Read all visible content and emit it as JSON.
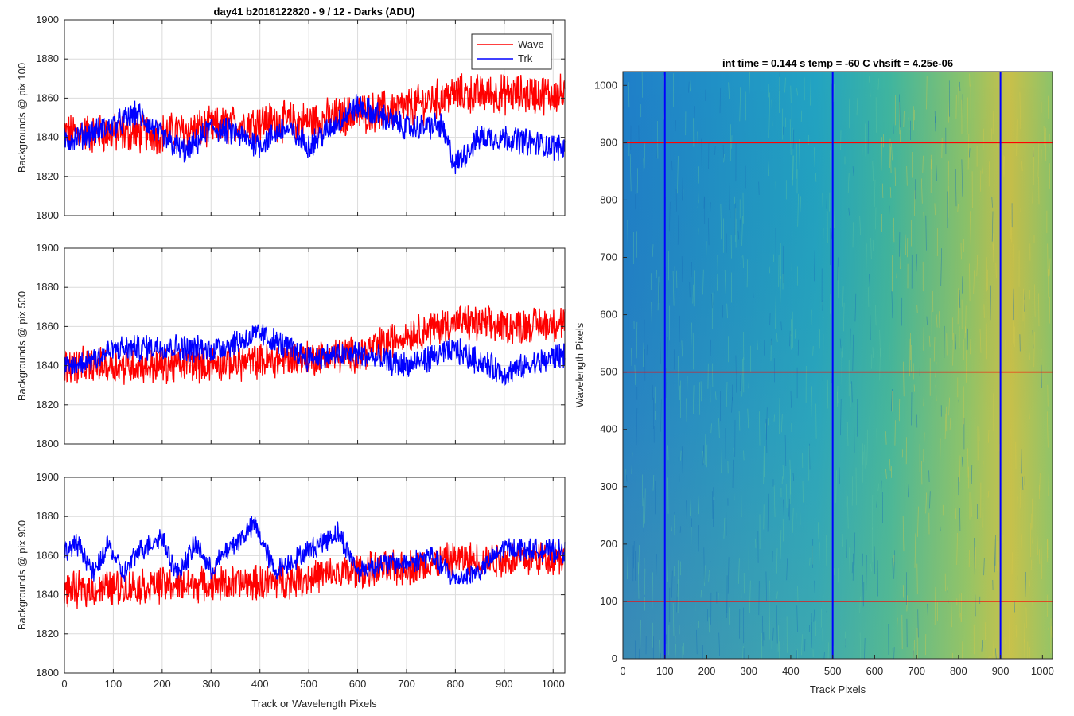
{
  "figure": {
    "title": "day41 b2016122820 - 9 / 12 - Darks (ADU)",
    "xlabel": "Track or Wavelength Pixels"
  },
  "chart_data": [
    {
      "type": "line",
      "ylabel": "Backgrounds @ pix 100",
      "xlim": [
        0,
        1024
      ],
      "ylim": [
        1800,
        1900
      ],
      "xticks": [
        0,
        100,
        200,
        300,
        400,
        500,
        600,
        700,
        800,
        900,
        1000
      ],
      "yticks": [
        1800,
        1820,
        1840,
        1860,
        1880,
        1900
      ],
      "grid": true,
      "legend": {
        "position": "top-right",
        "entries": [
          "Wave",
          "Trk"
        ]
      },
      "series": [
        {
          "name": "Wave",
          "color": "#ff0000",
          "level": [
            [
              0,
              1842
            ],
            [
              100,
              1842
            ],
            [
              200,
              1842
            ],
            [
              300,
              1845
            ],
            [
              400,
              1848
            ],
            [
              500,
              1848
            ],
            [
              600,
              1852
            ],
            [
              700,
              1855
            ],
            [
              800,
              1862
            ],
            [
              900,
              1862
            ],
            [
              1024,
              1862
            ]
          ],
          "noise": 9
        },
        {
          "name": "Trk",
          "color": "#0000ff",
          "level": [
            [
              0,
              1838
            ],
            [
              50,
              1842
            ],
            [
              100,
              1846
            ],
            [
              150,
              1852
            ],
            [
              200,
              1840
            ],
            [
              250,
              1832
            ],
            [
              300,
              1845
            ],
            [
              350,
              1842
            ],
            [
              400,
              1836
            ],
            [
              450,
              1845
            ],
            [
              500,
              1836
            ],
            [
              550,
              1846
            ],
            [
              600,
              1856
            ],
            [
              700,
              1845
            ],
            [
              770,
              1846
            ],
            [
              800,
              1826
            ],
            [
              850,
              1840
            ],
            [
              900,
              1840
            ],
            [
              1000,
              1835
            ],
            [
              1024,
              1835
            ]
          ],
          "noise": 6
        }
      ]
    },
    {
      "type": "line",
      "ylabel": "Backgrounds @ pix 500",
      "xlim": [
        0,
        1024
      ],
      "ylim": [
        1800,
        1900
      ],
      "xticks": [
        0,
        100,
        200,
        300,
        400,
        500,
        600,
        700,
        800,
        900,
        1000
      ],
      "yticks": [
        1800,
        1820,
        1840,
        1860,
        1880,
        1900
      ],
      "grid": true,
      "series": [
        {
          "name": "Wave",
          "color": "#ff0000",
          "level": [
            [
              0,
              1840
            ],
            [
              200,
              1840
            ],
            [
              400,
              1842
            ],
            [
              600,
              1846
            ],
            [
              700,
              1856
            ],
            [
              800,
              1862
            ],
            [
              900,
              1860
            ],
            [
              1024,
              1862
            ]
          ],
          "noise": 8
        },
        {
          "name": "Trk",
          "color": "#0000ff",
          "level": [
            [
              0,
              1838
            ],
            [
              100,
              1848
            ],
            [
              200,
              1850
            ],
            [
              300,
              1848
            ],
            [
              400,
              1856
            ],
            [
              500,
              1844
            ],
            [
              600,
              1846
            ],
            [
              700,
              1840
            ],
            [
              800,
              1848
            ],
            [
              900,
              1836
            ],
            [
              1024,
              1846
            ]
          ],
          "noise": 6
        }
      ]
    },
    {
      "type": "line",
      "ylabel": "Backgrounds @ pix 900",
      "xlim": [
        0,
        1024
      ],
      "ylim": [
        1800,
        1900
      ],
      "xticks": [
        0,
        100,
        200,
        300,
        400,
        500,
        600,
        700,
        800,
        900,
        1000
      ],
      "yticks": [
        1800,
        1820,
        1840,
        1860,
        1880,
        1900
      ],
      "grid": true,
      "series": [
        {
          "name": "Wave",
          "color": "#ff0000",
          "level": [
            [
              0,
              1842
            ],
            [
              200,
              1845
            ],
            [
              400,
              1846
            ],
            [
              600,
              1852
            ],
            [
              700,
              1854
            ],
            [
              800,
              1858
            ],
            [
              900,
              1858
            ],
            [
              1024,
              1860
            ]
          ],
          "noise": 8
        },
        {
          "name": "Trk",
          "color": "#0000ff",
          "level": [
            [
              0,
              1862
            ],
            [
              30,
              1866
            ],
            [
              60,
              1850
            ],
            [
              90,
              1866
            ],
            [
              120,
              1850
            ],
            [
              150,
              1862
            ],
            [
              200,
              1870
            ],
            [
              230,
              1850
            ],
            [
              270,
              1866
            ],
            [
              300,
              1852
            ],
            [
              330,
              1862
            ],
            [
              390,
              1876
            ],
            [
              430,
              1852
            ],
            [
              470,
              1858
            ],
            [
              560,
              1872
            ],
            [
              600,
              1852
            ],
            [
              650,
              1856
            ],
            [
              700,
              1856
            ],
            [
              750,
              1860
            ],
            [
              800,
              1848
            ],
            [
              850,
              1852
            ],
            [
              900,
              1864
            ],
            [
              1024,
              1862
            ]
          ],
          "noise": 5
        }
      ]
    },
    {
      "type": "heatmap",
      "title": "int time = 0.144 s   temp = -60 C   vhsift = 4.25e-06",
      "xlabel": "Track Pixels",
      "ylabel": "Wavelength Pixels",
      "xlim": [
        0,
        1024
      ],
      "ylim": [
        0,
        1024
      ],
      "xticks": [
        0,
        100,
        200,
        300,
        400,
        500,
        600,
        700,
        800,
        900,
        1000
      ],
      "yticks": [
        0,
        100,
        200,
        300,
        400,
        500,
        600,
        700,
        800,
        900,
        1000
      ],
      "colormap": [
        "#1f7fc9",
        "#22a3c2",
        "#3fb59f",
        "#8cc36a",
        "#c8c04a"
      ],
      "vertical_markers": {
        "x": [
          100,
          500,
          900
        ],
        "color": "#0000ff"
      },
      "horizontal_markers": {
        "y": [
          100,
          500,
          900
        ],
        "color": "#ff0000"
      }
    }
  ]
}
